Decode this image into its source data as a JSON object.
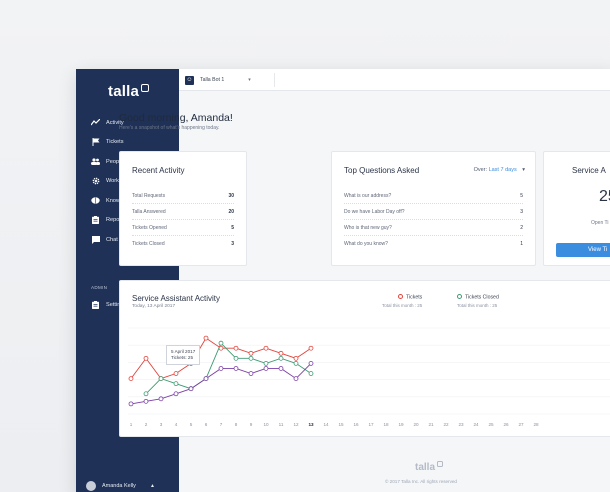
{
  "app": {
    "logo": "talla",
    "bot_selector": "Talla Bot 1",
    "greeting": "Good morning, Amanda!",
    "subgreeting": "Here's a snapshot of what's happening today.",
    "footer_logo": "talla",
    "footer_copy": "© 2017 Talla Inc. All rights reserved"
  },
  "sidebar": {
    "items": [
      {
        "label": "Activity",
        "icon": "activity-icon"
      },
      {
        "label": "Tickets",
        "icon": "flag-icon"
      },
      {
        "label": "People",
        "icon": "people-icon"
      },
      {
        "label": "Workflows",
        "icon": "gear-icon"
      },
      {
        "label": "Knowledge Base",
        "icon": "brain-icon"
      },
      {
        "label": "Reports",
        "icon": "clipboard-icon"
      },
      {
        "label": "Chat",
        "icon": "chat-icon"
      }
    ],
    "admin_label": "ADMIN",
    "settings": {
      "label": "Settings",
      "icon": "clipboard-icon"
    },
    "user_name": "Amanda Kelly"
  },
  "recent_activity": {
    "title": "Recent Activity",
    "rows": [
      {
        "label": "Total Requests",
        "value": "30"
      },
      {
        "label": "Talla Answered",
        "value": "20"
      },
      {
        "label": "Tickets Opened",
        "value": "5"
      },
      {
        "label": "Tickets Closed",
        "value": "3"
      }
    ]
  },
  "top_questions": {
    "title": "Top Questions Asked",
    "over_label": "Over:",
    "over_value": "Last 7 days",
    "rows": [
      {
        "label": "What is our address?",
        "value": "5"
      },
      {
        "label": "Do we have Labor Day off?",
        "value": "3"
      },
      {
        "label": "Who is that new guy?",
        "value": "2"
      },
      {
        "label": "What do you know?",
        "value": "1"
      }
    ]
  },
  "service_card": {
    "title": "Service A",
    "number": "25",
    "open_label": "Open Ti",
    "button": "View Ti"
  },
  "service_activity": {
    "title": "Service Assistant Activity",
    "date": "Today, 13 April 2017",
    "legend": [
      {
        "name": "Tickets",
        "sub": "Total this month : 25",
        "color": "#e0443c"
      },
      {
        "name": "Tickets Closed",
        "sub": "Total this month : 25",
        "color": "#3e9a72"
      }
    ],
    "tooltip_line1": "5 April 2017",
    "tooltip_line2": "Tickets: 25"
  },
  "chart_data": {
    "type": "line",
    "x": [
      1,
      2,
      3,
      4,
      5,
      6,
      7,
      8,
      9,
      10,
      11,
      12,
      13,
      14,
      15,
      16,
      17,
      18,
      19,
      20,
      21,
      22,
      23,
      24,
      25,
      26,
      27,
      28
    ],
    "x_tick_labels": [
      "1",
      "2",
      "3",
      "4",
      "5",
      "6",
      "7",
      "8",
      "9",
      "10",
      "11",
      "12",
      "13",
      "14",
      "15",
      "16",
      "17",
      "18",
      "19",
      "20",
      "21",
      "22",
      "23",
      "24",
      "25",
      "26",
      "27",
      "28"
    ],
    "highlight_x": "13",
    "series": [
      {
        "name": "Tickets",
        "color": "#e0443c",
        "x": [
          1,
          2,
          3,
          4,
          5,
          6,
          7,
          8,
          9,
          10,
          11,
          12,
          13
        ],
        "values": [
          22,
          26,
          22,
          23,
          25,
          30,
          28,
          28,
          27,
          28,
          27,
          26,
          28
        ]
      },
      {
        "name": "Tickets Closed",
        "color": "#3e9a72",
        "x": [
          2,
          3,
          4,
          5,
          6,
          7,
          8,
          9,
          10,
          11,
          12,
          13
        ],
        "values": [
          19,
          22,
          21,
          20,
          22,
          29,
          26,
          26,
          25,
          26,
          25,
          23
        ]
      },
      {
        "color": "#7b3fa6",
        "x": [
          1,
          2,
          3,
          4,
          5,
          6,
          7,
          8,
          9,
          10,
          11,
          12,
          13
        ],
        "values": [
          17,
          17.5,
          18,
          19,
          20,
          22,
          24,
          24,
          23,
          24,
          24,
          22,
          25
        ]
      }
    ],
    "ylim": [
      15,
      32
    ]
  }
}
